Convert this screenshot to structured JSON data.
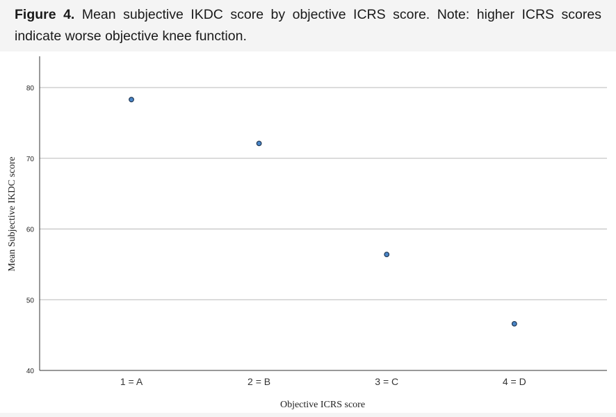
{
  "caption": {
    "figure_label": "Figure 4.",
    "text": "Mean subjective IKDC score by objective ICRS score. Note: higher ICRS scores indicate worse objective knee function."
  },
  "chart_data": {
    "type": "scatter",
    "categories": [
      "1 = A",
      "2 = B",
      "3 = C",
      "4 = D"
    ],
    "values": [
      78.3,
      72.1,
      56.4,
      46.6
    ],
    "xlabel": "Objective ICRS score",
    "ylabel": "Mean Subjective IKDC score",
    "ylim": [
      40,
      84
    ],
    "yticks": [
      40,
      50,
      60,
      70,
      80
    ],
    "grid": true,
    "marker_color": "#4a86c8",
    "marker_edge": "#1f3550"
  }
}
